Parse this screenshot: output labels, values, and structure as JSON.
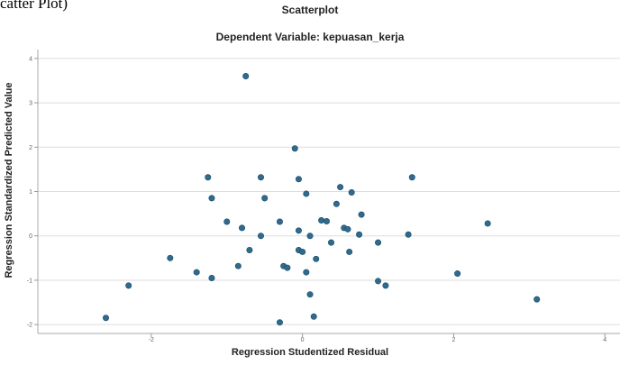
{
  "caption_fragment": "catter Plot)",
  "chart_data": {
    "type": "scatter",
    "title": "Scatterplot",
    "subtitle": "Dependent Variable: kepuasan_kerja",
    "xlabel": "Regression Studentized Residual",
    "ylabel": "Regression Standardized Predicted Value",
    "xlim": [
      -3.5,
      4.2
    ],
    "ylim": [
      -2.2,
      4.2
    ],
    "x_ticks": [
      -2,
      0,
      2,
      4
    ],
    "x_tick_labels": [
      "-2",
      "0",
      "2",
      "4"
    ],
    "y_ticks": [
      -2,
      -1,
      0,
      1,
      2,
      3,
      4
    ],
    "y_tick_labels": [
      "-2",
      "-1",
      "0",
      "1",
      "2",
      "3",
      "4"
    ],
    "grid": "horizontal",
    "point_color": "#2f6a8f",
    "points": [
      {
        "x": -0.75,
        "y": 3.6
      },
      {
        "x": -0.1,
        "y": 1.97
      },
      {
        "x": -1.25,
        "y": 1.32
      },
      {
        "x": -0.55,
        "y": 1.32
      },
      {
        "x": 1.45,
        "y": 1.32
      },
      {
        "x": -0.05,
        "y": 1.28
      },
      {
        "x": 0.5,
        "y": 1.1
      },
      {
        "x": 0.65,
        "y": 0.98
      },
      {
        "x": 0.05,
        "y": 0.95
      },
      {
        "x": -1.2,
        "y": 0.85
      },
      {
        "x": -0.5,
        "y": 0.85
      },
      {
        "x": 0.45,
        "y": 0.72
      },
      {
        "x": 0.78,
        "y": 0.48
      },
      {
        "x": 0.25,
        "y": 0.35
      },
      {
        "x": 0.32,
        "y": 0.33
      },
      {
        "x": -1.0,
        "y": 0.32
      },
      {
        "x": -0.3,
        "y": 0.32
      },
      {
        "x": 2.45,
        "y": 0.28
      },
      {
        "x": -0.8,
        "y": 0.18
      },
      {
        "x": 0.55,
        "y": 0.18
      },
      {
        "x": 0.6,
        "y": 0.15
      },
      {
        "x": -0.05,
        "y": 0.12
      },
      {
        "x": 0.75,
        "y": 0.03
      },
      {
        "x": 1.4,
        "y": 0.03
      },
      {
        "x": -0.55,
        "y": 0.0
      },
      {
        "x": 0.1,
        "y": 0.0
      },
      {
        "x": 0.38,
        "y": -0.15
      },
      {
        "x": 1.0,
        "y": -0.15
      },
      {
        "x": -0.05,
        "y": -0.32
      },
      {
        "x": 0.0,
        "y": -0.36
      },
      {
        "x": -0.7,
        "y": -0.32
      },
      {
        "x": 0.62,
        "y": -0.36
      },
      {
        "x": 0.18,
        "y": -0.52
      },
      {
        "x": -1.75,
        "y": -0.5
      },
      {
        "x": -0.85,
        "y": -0.68
      },
      {
        "x": -0.25,
        "y": -0.68
      },
      {
        "x": -0.2,
        "y": -0.72
      },
      {
        "x": -1.4,
        "y": -0.82
      },
      {
        "x": 0.05,
        "y": -0.82
      },
      {
        "x": 2.05,
        "y": -0.85
      },
      {
        "x": -1.2,
        "y": -0.95
      },
      {
        "x": 1.0,
        "y": -1.02
      },
      {
        "x": 1.1,
        "y": -1.12
      },
      {
        "x": -2.3,
        "y": -1.12
      },
      {
        "x": 0.1,
        "y": -1.32
      },
      {
        "x": 3.1,
        "y": -1.43
      },
      {
        "x": 0.15,
        "y": -1.82
      },
      {
        "x": -2.6,
        "y": -1.85
      },
      {
        "x": -0.3,
        "y": -1.95
      }
    ]
  }
}
